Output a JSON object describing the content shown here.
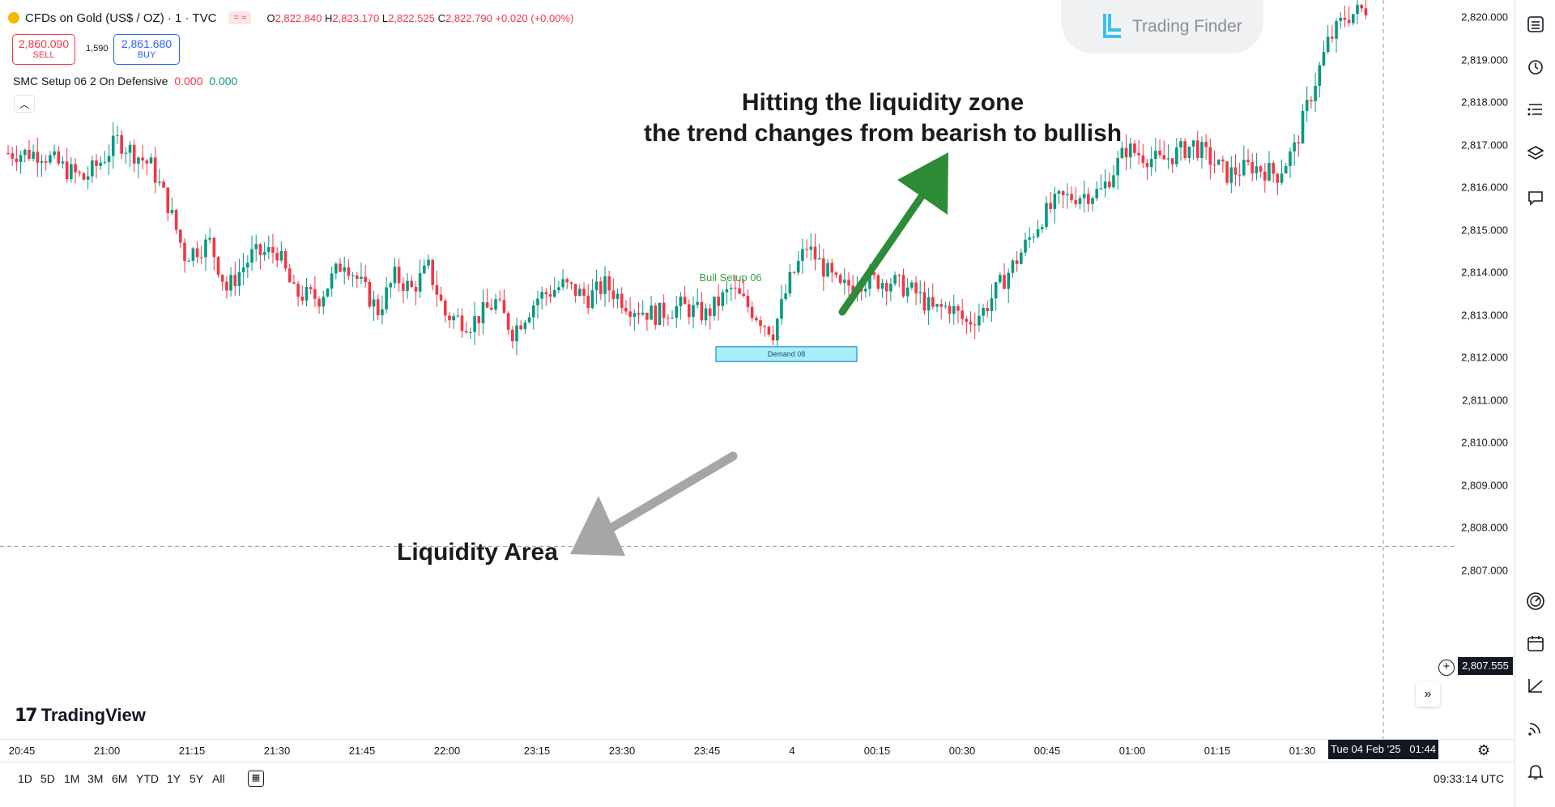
{
  "legend": {
    "symbol_name": "CFDs on Gold (US$ / OZ) · 1 · TVC",
    "o_label": "O",
    "open": "2,822.840",
    "h_label": "H",
    "high": "2,823.170",
    "l_label": "L",
    "low": "2,822.525",
    "c_label": "C",
    "close": "2,822.790",
    "change": "+0.020 (+0.00%)",
    "sell_price": "2,860.090",
    "sell_label": "SELL",
    "spread": "1,590",
    "buy_price": "2,861.680",
    "buy_label": "BUY",
    "indicator_name": "SMC Setup 06 2 On Defensive",
    "indicator_val1": "0.000",
    "indicator_val2": "0.000"
  },
  "watermark": "Trading Finder",
  "annotations": {
    "top_line1": "Hitting the liquidity zone",
    "top_line2": "the trend changes from bearish to bullish",
    "bottom": "Liquidity Area",
    "bull_setup": "Bull Setup 06",
    "demand_zone": "Demand 08"
  },
  "price_scale": {
    "labels": [
      "2,820.000",
      "2,819.000",
      "2,818.000",
      "2,817.000",
      "2,816.000",
      "2,815.000",
      "2,814.000",
      "2,813.000",
      "2,812.000",
      "2,811.000",
      "2,810.000",
      "2,809.000",
      "2,808.000",
      "2,807.000"
    ],
    "crosshair_price": "2,807.555"
  },
  "time_axis": {
    "labels": [
      "20:45",
      "21:00",
      "21:15",
      "21:30",
      "21:45",
      "22:00",
      "23:15",
      "23:30",
      "23:45",
      "4",
      "00:15",
      "00:30",
      "00:45",
      "01:00",
      "01:15",
      "01:30"
    ],
    "crosshair_time": "Tue 04 Feb '25   01:44"
  },
  "bottom_bar": {
    "ranges": [
      "1D",
      "5D",
      "1M",
      "3M",
      "6M",
      "YTD",
      "1Y",
      "5Y",
      "All"
    ],
    "clock": "09:33:14 UTC"
  },
  "brand": "TradingView",
  "colors": {
    "up": "#089981",
    "down": "#f23645",
    "demand_fill": "#a8eef8",
    "demand_border": "#1d8fd0",
    "green_arrow": "#2e8b38",
    "gray_arrow": "#a6a6a6",
    "bull_setup_text": "#3aa23a"
  },
  "chart_data": {
    "type": "candlestick",
    "symbol": "CFDs on Gold (US$ / OZ)",
    "interval": "1",
    "ylim": [
      2806.5,
      2820.3
    ],
    "price_ticks": [
      2820,
      2819,
      2818,
      2817,
      2816,
      2815,
      2814,
      2813,
      2812,
      2811,
      2810,
      2809,
      2808,
      2807
    ],
    "x_ticks": [
      "20:45",
      "21:00",
      "21:15",
      "21:30",
      "21:45",
      "22:00",
      "23:15",
      "23:30",
      "23:45",
      "4",
      "00:15",
      "00:30",
      "00:45",
      "01:00",
      "01:15",
      "01:30"
    ],
    "price_waypoints": [
      [
        0,
        2816.8
      ],
      [
        8,
        2816.8
      ],
      [
        14,
        2816.4
      ],
      [
        18,
        2816.2
      ],
      [
        22,
        2816.6
      ],
      [
        26,
        2817.1
      ],
      [
        30,
        2816.8
      ],
      [
        34,
        2816.5
      ],
      [
        38,
        2815.6
      ],
      [
        42,
        2814.4
      ],
      [
        48,
        2814.7
      ],
      [
        52,
        2813.6
      ],
      [
        58,
        2814.4
      ],
      [
        64,
        2814.5
      ],
      [
        68,
        2813.5
      ],
      [
        74,
        2813.4
      ],
      [
        80,
        2814.3
      ],
      [
        88,
        2813.1
      ],
      [
        92,
        2813.9
      ],
      [
        96,
        2813.6
      ],
      [
        100,
        2814.1
      ],
      [
        104,
        2813.0
      ],
      [
        110,
        2812.8
      ],
      [
        116,
        2813.3
      ],
      [
        120,
        2812.6
      ],
      [
        126,
        2813.4
      ],
      [
        132,
        2813.7
      ],
      [
        138,
        2813.4
      ],
      [
        142,
        2813.7
      ],
      [
        148,
        2813.2
      ],
      [
        154,
        2813.0
      ],
      [
        160,
        2813.2
      ],
      [
        166,
        2813.0
      ],
      [
        172,
        2813.6
      ],
      [
        178,
        2813.0
      ],
      [
        182,
        2812.6
      ],
      [
        186,
        2813.8
      ],
      [
        190,
        2814.6
      ],
      [
        194,
        2814.1
      ],
      [
        198,
        2813.6
      ],
      [
        202,
        2813.8
      ],
      [
        210,
        2813.8
      ],
      [
        216,
        2813.5
      ],
      [
        220,
        2813.1
      ],
      [
        224,
        2813.2
      ],
      [
        228,
        2812.8
      ],
      [
        232,
        2813.1
      ],
      [
        236,
        2813.7
      ],
      [
        240,
        2814.3
      ],
      [
        246,
        2815.3
      ],
      [
        250,
        2815.7
      ],
      [
        254,
        2815.8
      ],
      [
        260,
        2815.9
      ],
      [
        266,
        2816.9
      ],
      [
        274,
        2816.6
      ],
      [
        282,
        2817.0
      ],
      [
        290,
        2816.3
      ],
      [
        296,
        2816.5
      ],
      [
        302,
        2816.3
      ],
      [
        306,
        2816.9
      ],
      [
        310,
        2818.2
      ],
      [
        314,
        2819.4
      ],
      [
        318,
        2820.0
      ],
      [
        323,
        2820.2
      ]
    ],
    "zones": [
      {
        "label": "Demand 08",
        "price_top": 2812.25,
        "price_bottom": 2811.9
      }
    ],
    "markers": [
      {
        "label": "Bull Setup 06"
      }
    ],
    "crosshair_price": 2807.555,
    "last_price_open": 2822.84,
    "last_price_high": 2823.17,
    "last_price_low": 2822.525,
    "last_price_close": 2822.79
  }
}
